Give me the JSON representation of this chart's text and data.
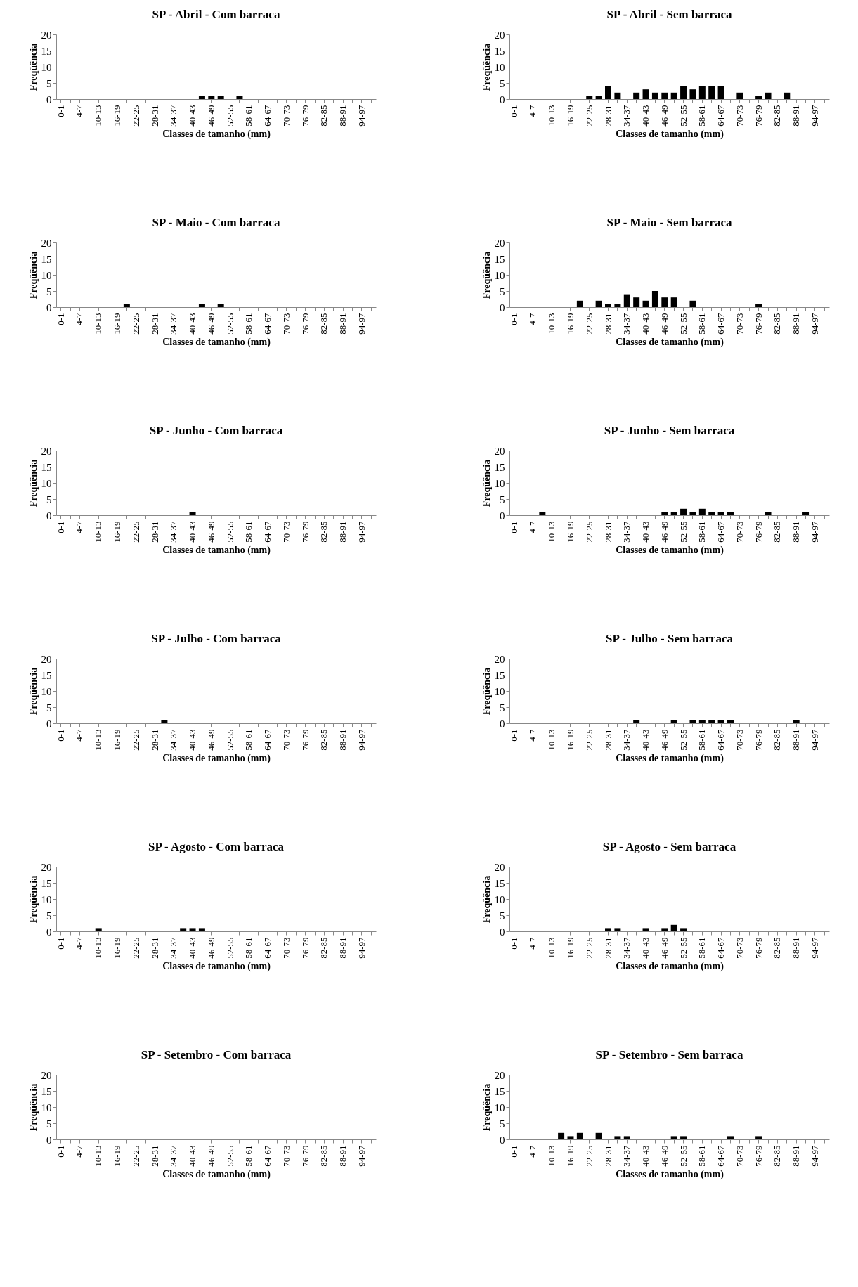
{
  "chart_data": [
    {
      "type": "bar",
      "title": "SP - Abril - Com barraca",
      "xlabel": "Classes de tamanho (mm)",
      "ylabel": "Freqüência",
      "color": "#000000",
      "ylim": [
        0,
        20
      ],
      "yticks": [
        0,
        5,
        10,
        15,
        20
      ],
      "grid": false,
      "categories": [
        "0-1",
        null,
        "4-7",
        null,
        "10-13",
        null,
        "16-19",
        null,
        "22-25",
        null,
        "28-31",
        null,
        "34-37",
        null,
        "40-43",
        null,
        "46-49",
        null,
        "52-55",
        null,
        "58-61",
        null,
        "64-67",
        null,
        "70-73",
        null,
        "76-79",
        null,
        "82-85",
        null,
        "88-91",
        null,
        "94-97",
        null
      ],
      "values": [
        0,
        0,
        0,
        0,
        0,
        0,
        0,
        0,
        0,
        0,
        0,
        0,
        0,
        0,
        0,
        1,
        1,
        1,
        0,
        1,
        0,
        0,
        0,
        0,
        0,
        0,
        0,
        0,
        0,
        0,
        0,
        0,
        0,
        0
      ]
    },
    {
      "type": "bar",
      "title": "SP - Abril - Sem barraca",
      "xlabel": "Classes de tamanho (mm)",
      "ylabel": "Freqüência",
      "color": "#000000",
      "ylim": [
        0,
        20
      ],
      "yticks": [
        0,
        5,
        10,
        15,
        20
      ],
      "grid": false,
      "categories": [
        "0-1",
        null,
        "4-7",
        null,
        "10-13",
        null,
        "16-19",
        null,
        "22-25",
        null,
        "28-31",
        null,
        "34-37",
        null,
        "40-43",
        null,
        "46-49",
        null,
        "52-55",
        null,
        "58-61",
        null,
        "64-67",
        null,
        "70-73",
        null,
        "76-79",
        null,
        "82-85",
        null,
        "88-91",
        null,
        "94-97",
        null
      ],
      "values": [
        0,
        0,
        0,
        0,
        0,
        0,
        0,
        0,
        1,
        1,
        4,
        2,
        0,
        2,
        3,
        2,
        2,
        2,
        4,
        3,
        4,
        4,
        4,
        0,
        2,
        0,
        1,
        2,
        0,
        2,
        0,
        0,
        0,
        0
      ]
    },
    {
      "type": "bar",
      "title": "SP - Maio - Com barraca",
      "xlabel": "Classes de tamanho (mm)",
      "ylabel": "Freqüência",
      "color": "#000000",
      "ylim": [
        0,
        20
      ],
      "yticks": [
        0,
        5,
        10,
        15,
        20
      ],
      "grid": false,
      "categories": [
        "0-1",
        null,
        "4-7",
        null,
        "10-13",
        null,
        "16-19",
        null,
        "22-25",
        null,
        "28-31",
        null,
        "34-37",
        null,
        "40-43",
        null,
        "46-49",
        null,
        "52-55",
        null,
        "58-61",
        null,
        "64-67",
        null,
        "70-73",
        null,
        "76-79",
        null,
        "82-85",
        null,
        "88-91",
        null,
        "94-97",
        null
      ],
      "values": [
        0,
        0,
        0,
        0,
        0,
        0,
        0,
        1,
        0,
        0,
        0,
        0,
        0,
        0,
        0,
        1,
        0,
        1,
        0,
        0,
        0,
        0,
        0,
        0,
        0,
        0,
        0,
        0,
        0,
        0,
        0,
        0,
        0,
        0
      ]
    },
    {
      "type": "bar",
      "title": "SP - Maio - Sem barraca",
      "xlabel": "Classes de tamanho (mm)",
      "ylabel": "Freqüência",
      "color": "#000000",
      "ylim": [
        0,
        20
      ],
      "yticks": [
        0,
        5,
        10,
        15,
        20
      ],
      "grid": false,
      "categories": [
        "0-1",
        null,
        "4-7",
        null,
        "10-13",
        null,
        "16-19",
        null,
        "22-25",
        null,
        "28-31",
        null,
        "34-37",
        null,
        "40-43",
        null,
        "46-49",
        null,
        "52-55",
        null,
        "58-61",
        null,
        "64-67",
        null,
        "70-73",
        null,
        "76-79",
        null,
        "82-85",
        null,
        "88-91",
        null,
        "94-97",
        null
      ],
      "values": [
        0,
        0,
        0,
        0,
        0,
        0,
        0,
        2,
        0,
        2,
        1,
        1,
        4,
        3,
        2,
        5,
        3,
        3,
        0,
        2,
        0,
        0,
        0,
        0,
        0,
        0,
        1,
        0,
        0,
        0,
        0,
        0,
        0,
        0
      ]
    },
    {
      "type": "bar",
      "title": "SP - Junho - Com barraca",
      "xlabel": "Classes de tamanho (mm)",
      "ylabel": "Freqüência",
      "color": "#000000",
      "ylim": [
        0,
        20
      ],
      "yticks": [
        0,
        5,
        10,
        15,
        20
      ],
      "grid": false,
      "categories": [
        "0-1",
        null,
        "4-7",
        null,
        "10-13",
        null,
        "16-19",
        null,
        "22-25",
        null,
        "28-31",
        null,
        "34-37",
        null,
        "40-43",
        null,
        "46-49",
        null,
        "52-55",
        null,
        "58-61",
        null,
        "64-67",
        null,
        "70-73",
        null,
        "76-79",
        null,
        "82-85",
        null,
        "88-91",
        null,
        "94-97",
        null
      ],
      "values": [
        0,
        0,
        0,
        0,
        0,
        0,
        0,
        0,
        0,
        0,
        0,
        0,
        0,
        0,
        1,
        0,
        0,
        0,
        0,
        0,
        0,
        0,
        0,
        0,
        0,
        0,
        0,
        0,
        0,
        0,
        0,
        0,
        0,
        0
      ]
    },
    {
      "type": "bar",
      "title": "SP - Junho - Sem barraca",
      "xlabel": "Classes de tamanho (mm)",
      "ylabel": "Freqüência",
      "color": "#000000",
      "ylim": [
        0,
        20
      ],
      "yticks": [
        0,
        5,
        10,
        15,
        20
      ],
      "grid": false,
      "categories": [
        "0-1",
        null,
        "4-7",
        null,
        "10-13",
        null,
        "16-19",
        null,
        "22-25",
        null,
        "28-31",
        null,
        "34-37",
        null,
        "40-43",
        null,
        "46-49",
        null,
        "52-55",
        null,
        "58-61",
        null,
        "64-67",
        null,
        "70-73",
        null,
        "76-79",
        null,
        "82-85",
        null,
        "88-91",
        null,
        "94-97",
        null
      ],
      "values": [
        0,
        0,
        0,
        1,
        0,
        0,
        0,
        0,
        0,
        0,
        0,
        0,
        0,
        0,
        0,
        0,
        1,
        1,
        2,
        1,
        2,
        1,
        1,
        1,
        0,
        0,
        0,
        1,
        0,
        0,
        0,
        1,
        0,
        0
      ]
    },
    {
      "type": "bar",
      "title": "SP - Julho - Com barraca",
      "xlabel": "Classes de tamanho (mm)",
      "ylabel": "Freqüência",
      "color": "#000000",
      "ylim": [
        0,
        20
      ],
      "yticks": [
        0,
        5,
        10,
        15,
        20
      ],
      "grid": false,
      "categories": [
        "0-1",
        null,
        "4-7",
        null,
        "10-13",
        null,
        "16-19",
        null,
        "22-25",
        null,
        "28-31",
        null,
        "34-37",
        null,
        "40-43",
        null,
        "46-49",
        null,
        "52-55",
        null,
        "58-61",
        null,
        "64-67",
        null,
        "70-73",
        null,
        "76-79",
        null,
        "82-85",
        null,
        "88-91",
        null,
        "94-97",
        null
      ],
      "values": [
        0,
        0,
        0,
        0,
        0,
        0,
        0,
        0,
        0,
        0,
        0,
        1,
        0,
        0,
        0,
        0,
        0,
        0,
        0,
        0,
        0,
        0,
        0,
        0,
        0,
        0,
        0,
        0,
        0,
        0,
        0,
        0,
        0,
        0
      ]
    },
    {
      "type": "bar",
      "title": "SP - Julho - Sem barraca",
      "xlabel": "Classes de tamanho (mm)",
      "ylabel": "Freqüência",
      "color": "#000000",
      "ylim": [
        0,
        20
      ],
      "yticks": [
        0,
        5,
        10,
        15,
        20
      ],
      "grid": false,
      "categories": [
        "0-1",
        null,
        "4-7",
        null,
        "10-13",
        null,
        "16-19",
        null,
        "22-25",
        null,
        "28-31",
        null,
        "34-37",
        null,
        "40-43",
        null,
        "46-49",
        null,
        "52-55",
        null,
        "58-61",
        null,
        "64-67",
        null,
        "70-73",
        null,
        "76-79",
        null,
        "82-85",
        null,
        "88-91",
        null,
        "94-97",
        null
      ],
      "values": [
        0,
        0,
        0,
        0,
        0,
        0,
        0,
        0,
        0,
        0,
        0,
        0,
        0,
        1,
        0,
        0,
        0,
        1,
        0,
        1,
        1,
        1,
        1,
        1,
        0,
        0,
        0,
        0,
        0,
        0,
        1,
        0,
        0,
        0
      ]
    },
    {
      "type": "bar",
      "title": "SP - Agosto - Com barraca",
      "xlabel": "Classes de tamanho (mm)",
      "ylabel": "Freqüência",
      "color": "#000000",
      "ylim": [
        0,
        20
      ],
      "yticks": [
        0,
        5,
        10,
        15,
        20
      ],
      "grid": false,
      "categories": [
        "0-1",
        null,
        "4-7",
        null,
        "10-13",
        null,
        "16-19",
        null,
        "22-25",
        null,
        "28-31",
        null,
        "34-37",
        null,
        "40-43",
        null,
        "46-49",
        null,
        "52-55",
        null,
        "58-61",
        null,
        "64-67",
        null,
        "70-73",
        null,
        "76-79",
        null,
        "82-85",
        null,
        "88-91",
        null,
        "94-97",
        null
      ],
      "values": [
        0,
        0,
        0,
        0,
        1,
        0,
        0,
        0,
        0,
        0,
        0,
        0,
        0,
        1,
        1,
        1,
        0,
        0,
        0,
        0,
        0,
        0,
        0,
        0,
        0,
        0,
        0,
        0,
        0,
        0,
        0,
        0,
        0,
        0
      ]
    },
    {
      "type": "bar",
      "title": "SP - Agosto - Sem barraca",
      "xlabel": "Classes de tamanho (mm)",
      "ylabel": "Freqüência",
      "color": "#000000",
      "ylim": [
        0,
        20
      ],
      "yticks": [
        0,
        5,
        10,
        15,
        20
      ],
      "grid": false,
      "categories": [
        "0-1",
        null,
        "4-7",
        null,
        "10-13",
        null,
        "16-19",
        null,
        "22-25",
        null,
        "28-31",
        null,
        "34-37",
        null,
        "40-43",
        null,
        "46-49",
        null,
        "52-55",
        null,
        "58-61",
        null,
        "64-67",
        null,
        "70-73",
        null,
        "76-79",
        null,
        "82-85",
        null,
        "88-91",
        null,
        "94-97",
        null
      ],
      "values": [
        0,
        0,
        0,
        0,
        0,
        0,
        0,
        0,
        0,
        0,
        1,
        1,
        0,
        0,
        1,
        0,
        1,
        2,
        1,
        0,
        0,
        0,
        0,
        0,
        0,
        0,
        0,
        0,
        0,
        0,
        0,
        0,
        0,
        0
      ]
    },
    {
      "type": "bar",
      "title": "SP - Setembro - Com barraca",
      "xlabel": "Classes de tamanho (mm)",
      "ylabel": "Freqüência",
      "color": "#000000",
      "ylim": [
        0,
        20
      ],
      "yticks": [
        0,
        5,
        10,
        15,
        20
      ],
      "grid": false,
      "categories": [
        "0-1",
        null,
        "4-7",
        null,
        "10-13",
        null,
        "16-19",
        null,
        "22-25",
        null,
        "28-31",
        null,
        "34-37",
        null,
        "40-43",
        null,
        "46-49",
        null,
        "52-55",
        null,
        "58-61",
        null,
        "64-67",
        null,
        "70-73",
        null,
        "76-79",
        null,
        "82-85",
        null,
        "88-91",
        null,
        "94-97",
        null
      ],
      "values": [
        0,
        0,
        0,
        0,
        0,
        0,
        0,
        0,
        0,
        0,
        0,
        0,
        0,
        0,
        0,
        0,
        0,
        0,
        0,
        0,
        0,
        0,
        0,
        0,
        0,
        0,
        0,
        0,
        0,
        0,
        0,
        0,
        0,
        0
      ]
    },
    {
      "type": "bar",
      "title": "SP - Setembro - Sem barraca",
      "xlabel": "Classes de tamanho (mm)",
      "ylabel": "Freqüência",
      "color": "#000000",
      "ylim": [
        0,
        20
      ],
      "yticks": [
        0,
        5,
        10,
        15,
        20
      ],
      "grid": false,
      "categories": [
        "0-1",
        null,
        "4-7",
        null,
        "10-13",
        null,
        "16-19",
        null,
        "22-25",
        null,
        "28-31",
        null,
        "34-37",
        null,
        "40-43",
        null,
        "46-49",
        null,
        "52-55",
        null,
        "58-61",
        null,
        "64-67",
        null,
        "70-73",
        null,
        "76-79",
        null,
        "82-85",
        null,
        "88-91",
        null,
        "94-97",
        null
      ],
      "values": [
        0,
        0,
        0,
        0,
        0,
        2,
        1,
        2,
        0,
        2,
        0,
        1,
        1,
        0,
        0,
        0,
        0,
        1,
        1,
        0,
        0,
        0,
        0,
        1,
        0,
        0,
        1,
        0,
        0,
        0,
        0,
        0,
        0,
        0
      ]
    }
  ]
}
